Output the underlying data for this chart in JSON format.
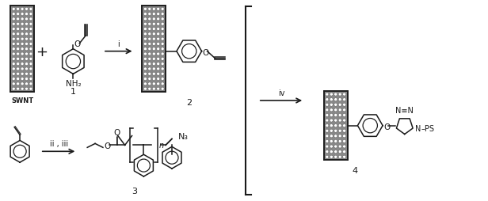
{
  "bg_color": "#ffffff",
  "line_color": "#1a1a1a",
  "fig_width": 6.16,
  "fig_height": 2.55,
  "dpi": 100,
  "swnt_fill": "#909090",
  "swnt_dot_fill": "#ffffff",
  "labels": {
    "swnt": "SWNT",
    "num1": "1",
    "num2": "2",
    "num3": "3",
    "num4": "4",
    "nh2": "NH₂",
    "step_i": "i",
    "step_ii_iii": "ii , iii",
    "step_iv": "iv",
    "n3": "N₃",
    "ps": "PS",
    "o_label": "O",
    "ntn_label": "N≡N",
    "n_label": "N"
  }
}
